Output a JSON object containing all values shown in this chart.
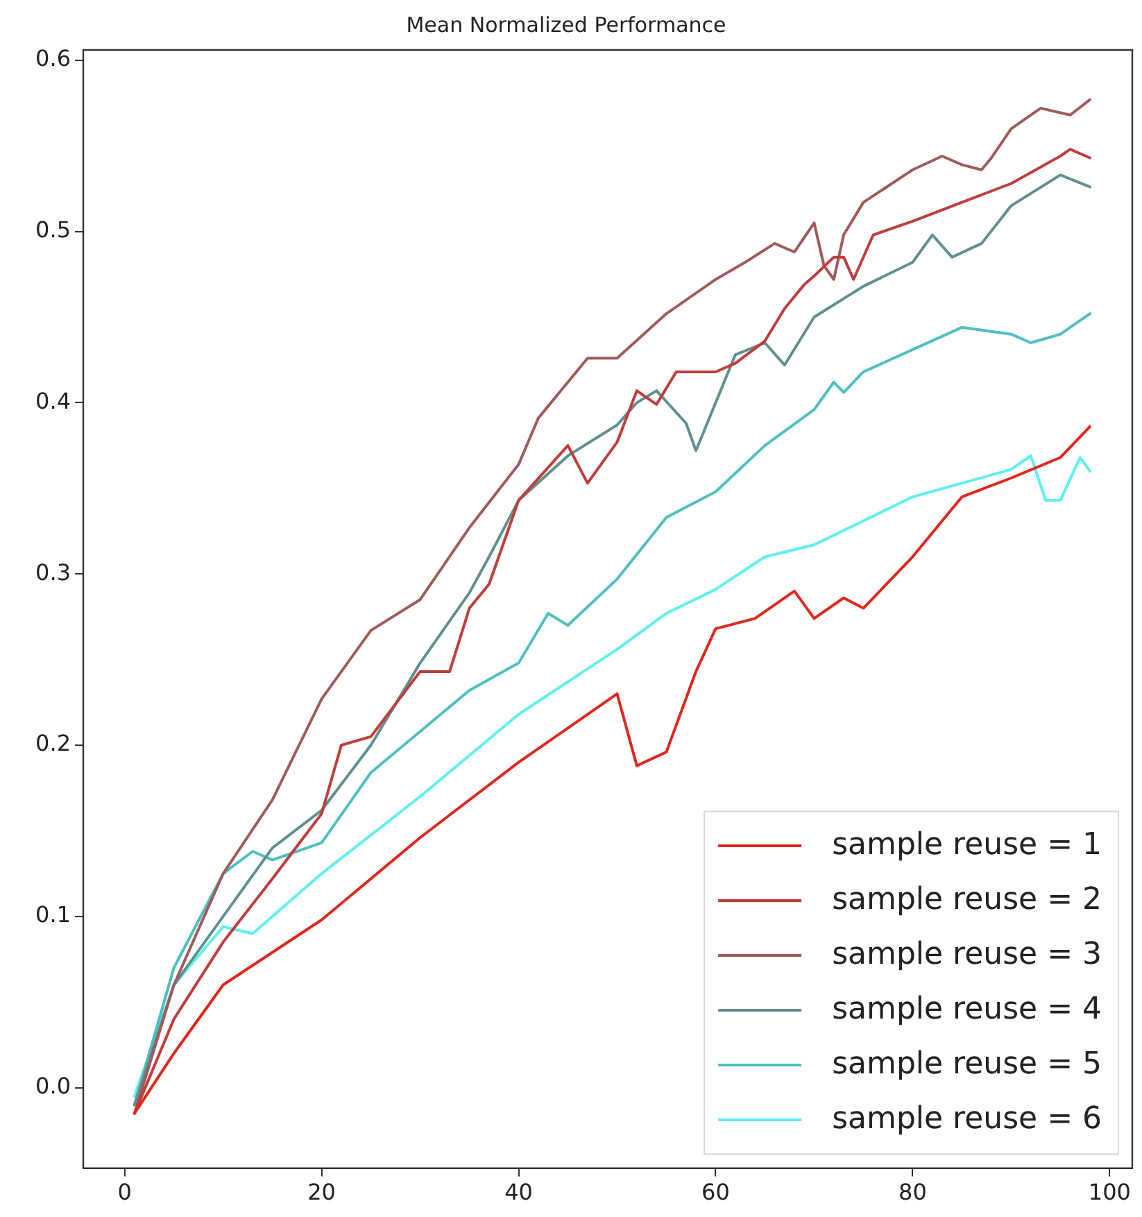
{
  "chart_data": {
    "type": "line",
    "title": "Mean Normalized Performance",
    "xlim": [
      -4.2,
      102.3
    ],
    "ylim": [
      -0.047,
      0.606
    ],
    "xticks": [
      0,
      20,
      40,
      60,
      80,
      100
    ],
    "yticks": [
      {
        "value": 0,
        "label": "0.0"
      },
      0.1,
      0.2,
      0.3,
      0.4,
      0.5,
      0.6
    ],
    "grid": false,
    "legend": "bottom right",
    "marker": "none",
    "line_style": "solid",
    "series": [
      {
        "name": "sample reuse = 1",
        "color": "#e0261d",
        "x": [
          1,
          5,
          10,
          20,
          30,
          40,
          50,
          52,
          55,
          58,
          60,
          64,
          68,
          70,
          73,
          75,
          80,
          85,
          90,
          95,
          98
        ],
        "values": [
          -0.015,
          0.02,
          0.06,
          0.098,
          0.146,
          0.19,
          0.23,
          0.188,
          0.196,
          0.243,
          0.268,
          0.274,
          0.29,
          0.274,
          0.286,
          0.28,
          0.31,
          0.345,
          0.356,
          0.368,
          0.386
        ]
      },
      {
        "name": "sample reuse = 2",
        "color": "#c03c3c",
        "x": [
          1,
          5,
          10,
          15,
          20,
          22,
          25,
          30,
          33,
          35,
          37,
          40,
          45,
          47,
          50,
          52,
          54,
          56,
          60,
          62,
          65,
          67,
          69,
          70,
          72,
          73,
          74,
          76,
          80,
          85,
          90,
          95,
          96,
          98
        ],
        "values": [
          -0.015,
          0.04,
          0.085,
          0.122,
          0.16,
          0.2,
          0.205,
          0.243,
          0.243,
          0.28,
          0.294,
          0.343,
          0.375,
          0.353,
          0.377,
          0.407,
          0.399,
          0.418,
          0.418,
          0.423,
          0.436,
          0.455,
          0.469,
          0.474,
          0.485,
          0.485,
          0.472,
          0.498,
          0.506,
          0.517,
          0.528,
          0.544,
          0.548,
          0.543
        ]
      },
      {
        "name": "sample reuse = 3",
        "color": "#a05a5a",
        "x": [
          1,
          5,
          10,
          15,
          20,
          25,
          30,
          35,
          40,
          42,
          45,
          47,
          50,
          55,
          60,
          63,
          66,
          68,
          70,
          71,
          72,
          73,
          75,
          80,
          83,
          85,
          87,
          88,
          90,
          93,
          96,
          98
        ],
        "values": [
          -0.015,
          0.06,
          0.125,
          0.168,
          0.227,
          0.267,
          0.285,
          0.327,
          0.364,
          0.391,
          0.412,
          0.426,
          0.426,
          0.452,
          0.472,
          0.482,
          0.493,
          0.488,
          0.505,
          0.48,
          0.472,
          0.498,
          0.517,
          0.536,
          0.544,
          0.539,
          0.536,
          0.543,
          0.56,
          0.572,
          0.568,
          0.577
        ]
      },
      {
        "name": "sample reuse = 4",
        "color": "#5f9090",
        "x": [
          1,
          5,
          10,
          15,
          20,
          25,
          30,
          35,
          37,
          40,
          45,
          50,
          52,
          54,
          57,
          58,
          60,
          62,
          65,
          67,
          70,
          75,
          80,
          82,
          84,
          87,
          90,
          95,
          98
        ],
        "values": [
          -0.01,
          0.06,
          0.1,
          0.14,
          0.162,
          0.2,
          0.248,
          0.289,
          0.31,
          0.343,
          0.369,
          0.387,
          0.4,
          0.407,
          0.388,
          0.372,
          0.4,
          0.428,
          0.435,
          0.422,
          0.45,
          0.468,
          0.482,
          0.498,
          0.485,
          0.493,
          0.515,
          0.533,
          0.526
        ]
      },
      {
        "name": "sample reuse = 5",
        "color": "#4fbfbf",
        "x": [
          1,
          5,
          10,
          13,
          15,
          20,
          25,
          30,
          35,
          40,
          43,
          45,
          50,
          55,
          60,
          65,
          70,
          72,
          73,
          75,
          80,
          85,
          90,
          92,
          95,
          98
        ],
        "values": [
          -0.01,
          0.07,
          0.125,
          0.138,
          0.133,
          0.143,
          0.184,
          0.208,
          0.232,
          0.248,
          0.277,
          0.27,
          0.297,
          0.333,
          0.348,
          0.375,
          0.396,
          0.412,
          0.406,
          0.418,
          0.431,
          0.444,
          0.44,
          0.435,
          0.44,
          0.452
        ]
      },
      {
        "name": "sample reuse = 6",
        "color": "#5ef0f0",
        "x": [
          1,
          5,
          10,
          13,
          20,
          30,
          40,
          50,
          55,
          60,
          65,
          70,
          75,
          80,
          85,
          90,
          92,
          93.5,
          95,
          97,
          98
        ],
        "values": [
          -0.005,
          0.06,
          0.094,
          0.09,
          0.125,
          0.17,
          0.218,
          0.256,
          0.277,
          0.291,
          0.31,
          0.317,
          0.331,
          0.345,
          0.353,
          0.361,
          0.369,
          0.343,
          0.343,
          0.368,
          0.36
        ]
      }
    ]
  }
}
